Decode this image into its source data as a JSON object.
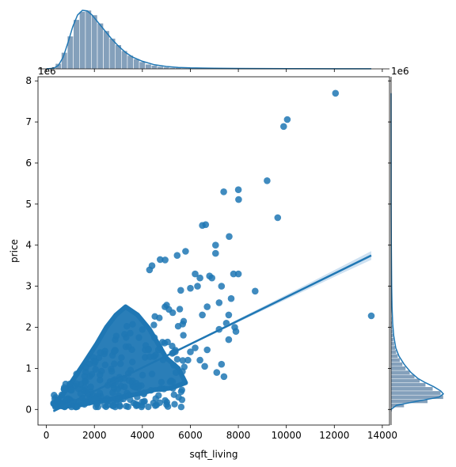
{
  "chart_data": {
    "type": "scatter",
    "subtype": "jointplot-regression",
    "xlabel": "sqft_living",
    "ylabel": "price",
    "y_offset_text": "1e6",
    "marginal_y_offset_text": "1e6",
    "xlim": [
      -350,
      14300
    ],
    "ylim": [
      -380000,
      8100000
    ],
    "xticks": [
      0,
      2000,
      4000,
      6000,
      8000,
      10000,
      12000,
      14000
    ],
    "yticks": [
      0,
      1000000,
      2000000,
      3000000,
      4000000,
      5000000,
      6000000,
      7000000,
      8000000
    ],
    "ytick_labels": [
      "0",
      "1",
      "2",
      "3",
      "4",
      "5",
      "6",
      "7",
      "8"
    ],
    "colors": {
      "points": "#1f77b4",
      "hist": "#6f8faf",
      "kde": "#1f77b4",
      "ci": "#a6c8e6"
    },
    "regression": {
      "x": [
        290,
        13540
      ],
      "y": [
        -45000,
        3750000
      ],
      "ci_halfwidth_end": 90000
    },
    "dense_cloud": [
      [
        400,
        80000
      ],
      [
        700,
        60000
      ],
      [
        1000,
        90000
      ],
      [
        1500,
        120000
      ],
      [
        2000,
        180000
      ],
      [
        2500,
        230000
      ],
      [
        3000,
        290000
      ],
      [
        3500,
        340000
      ],
      [
        4000,
        400000
      ],
      [
        4500,
        480000
      ],
      [
        5200,
        520000
      ],
      [
        5800,
        650000
      ],
      [
        5500,
        1000000
      ],
      [
        5000,
        1250000
      ],
      [
        4700,
        1550000
      ],
      [
        4300,
        1950000
      ],
      [
        3800,
        2300000
      ],
      [
        3300,
        2500000
      ],
      [
        2900,
        2300000
      ],
      [
        2500,
        2000000
      ],
      [
        2100,
        1600000
      ],
      [
        1600,
        1150000
      ],
      [
        1200,
        800000
      ],
      [
        800,
        450000
      ],
      [
        500,
        250000
      ],
      [
        300,
        120000
      ]
    ],
    "outliers": [
      [
        12050,
        7700000
      ],
      [
        10040,
        7060000
      ],
      [
        9890,
        6890000
      ],
      [
        9200,
        5570000
      ],
      [
        8000,
        5350000
      ],
      [
        7390,
        5300000
      ],
      [
        8010,
        5110000
      ],
      [
        9640,
        4670000
      ],
      [
        6640,
        4500000
      ],
      [
        6500,
        4480000
      ],
      [
        7620,
        4210000
      ],
      [
        7050,
        4000000
      ],
      [
        7050,
        3800000
      ],
      [
        5800,
        3850000
      ],
      [
        5450,
        3750000
      ],
      [
        4740,
        3650000
      ],
      [
        4950,
        3640000
      ],
      [
        4400,
        3500000
      ],
      [
        4300,
        3400000
      ],
      [
        6200,
        3300000
      ],
      [
        7800,
        3300000
      ],
      [
        8000,
        3300000
      ],
      [
        6800,
        3250000
      ],
      [
        6900,
        3200000
      ],
      [
        7300,
        3000000
      ],
      [
        6400,
        3200000
      ],
      [
        6300,
        3000000
      ],
      [
        6000,
        2950000
      ],
      [
        5600,
        2900000
      ],
      [
        8700,
        2880000
      ],
      [
        7700,
        2700000
      ],
      [
        7200,
        2600000
      ],
      [
        6700,
        2500000
      ],
      [
        6500,
        2300000
      ],
      [
        7600,
        2300000
      ],
      [
        7850,
        2000000
      ],
      [
        7500,
        2100000
      ],
      [
        7200,
        1950000
      ],
      [
        7900,
        1900000
      ],
      [
        7600,
        1700000
      ],
      [
        7300,
        1100000
      ],
      [
        7100,
        900000
      ],
      [
        7400,
        800000
      ],
      [
        6600,
        1050000
      ],
      [
        6700,
        1450000
      ],
      [
        6400,
        1200000
      ],
      [
        6200,
        1500000
      ],
      [
        6000,
        1400000
      ],
      [
        5900,
        1200000
      ],
      [
        5400,
        900000
      ],
      [
        5200,
        700000
      ],
      [
        4900,
        500000
      ],
      [
        13540,
        2280000
      ]
    ],
    "x_hist": {
      "bin_width": 250,
      "bins": [
        [
          250,
          1
        ],
        [
          500,
          9
        ],
        [
          750,
          28
        ],
        [
          1000,
          56
        ],
        [
          1250,
          84
        ],
        [
          1500,
          98
        ],
        [
          1750,
          100
        ],
        [
          2000,
          92
        ],
        [
          2250,
          78
        ],
        [
          2500,
          65
        ],
        [
          2750,
          52
        ],
        [
          3000,
          41
        ],
        [
          3250,
          31
        ],
        [
          3500,
          23
        ],
        [
          3750,
          17
        ],
        [
          4000,
          12
        ],
        [
          4250,
          8
        ],
        [
          4500,
          6
        ],
        [
          4750,
          4
        ],
        [
          5000,
          3
        ],
        [
          5250,
          2
        ],
        [
          5500,
          2
        ],
        [
          5750,
          1.4
        ],
        [
          6000,
          1
        ]
      ]
    },
    "x_kde": [
      [
        0,
        0
      ],
      [
        300,
        1
      ],
      [
        500,
        6
      ],
      [
        700,
        20
      ],
      [
        900,
        45
      ],
      [
        1100,
        72
      ],
      [
        1300,
        92
      ],
      [
        1500,
        100
      ],
      [
        1700,
        99
      ],
      [
        1900,
        92
      ],
      [
        2100,
        82
      ],
      [
        2300,
        72
      ],
      [
        2500,
        62
      ],
      [
        2700,
        52
      ],
      [
        3000,
        39
      ],
      [
        3300,
        28
      ],
      [
        3600,
        20
      ],
      [
        4000,
        13
      ],
      [
        4500,
        7
      ],
      [
        5000,
        4
      ],
      [
        5500,
        2.5
      ],
      [
        6000,
        1.6
      ],
      [
        7000,
        1
      ],
      [
        8000,
        0.7
      ],
      [
        10000,
        0.4
      ],
      [
        12000,
        0.2
      ],
      [
        13540,
        0.1
      ]
    ],
    "y_hist": {
      "bin_width": 100000,
      "bins": [
        [
          0,
          2
        ],
        [
          100000,
          25
        ],
        [
          200000,
          70
        ],
        [
          300000,
          100
        ],
        [
          400000,
          95
        ],
        [
          500000,
          80
        ],
        [
          600000,
          66
        ],
        [
          700000,
          55
        ],
        [
          800000,
          45
        ],
        [
          900000,
          36
        ],
        [
          1000000,
          28
        ],
        [
          1100000,
          22
        ],
        [
          1200000,
          17
        ],
        [
          1300000,
          13
        ],
        [
          1400000,
          10
        ],
        [
          1500000,
          8
        ],
        [
          1600000,
          6
        ],
        [
          1700000,
          5
        ],
        [
          1800000,
          4
        ],
        [
          1900000,
          3
        ],
        [
          2000000,
          2.5
        ],
        [
          2100000,
          2
        ],
        [
          2200000,
          1.5
        ],
        [
          2400000,
          1
        ],
        [
          2600000,
          0.8
        ],
        [
          2800000,
          0.6
        ],
        [
          3000000,
          0.5
        ],
        [
          3200000,
          0.4
        ],
        [
          3400000,
          0.3
        ],
        [
          3600000,
          0.2
        ]
      ]
    },
    "y_kde": [
      [
        0,
        0
      ],
      [
        100000,
        10
      ],
      [
        200000,
        50
      ],
      [
        300000,
        92
      ],
      [
        380000,
        100
      ],
      [
        450000,
        95
      ],
      [
        550000,
        82
      ],
      [
        650000,
        66
      ],
      [
        750000,
        52
      ],
      [
        900000,
        38
      ],
      [
        1100000,
        25
      ],
      [
        1300000,
        15
      ],
      [
        1500000,
        9
      ],
      [
        1800000,
        5
      ],
      [
        2100000,
        3
      ],
      [
        2500000,
        1.8
      ],
      [
        3000000,
        1
      ],
      [
        4000000,
        0.4
      ],
      [
        5000000,
        0.2
      ],
      [
        6000000,
        0.1
      ],
      [
        7700000,
        0.05
      ]
    ]
  }
}
